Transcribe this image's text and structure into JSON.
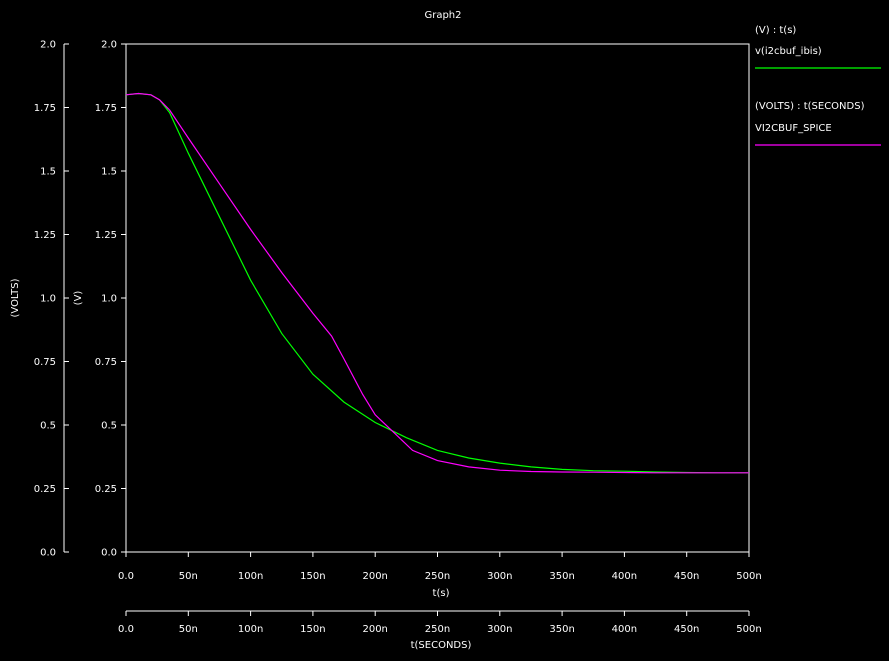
{
  "chart_data": {
    "type": "line",
    "title": "Graph2",
    "xlabel": "t(s)",
    "xlabel_secondary": "t(SECONDS)",
    "ylabel": "(V)",
    "ylabel_secondary": "(VOLTS)",
    "xlim": [
      0,
      500
    ],
    "ylim": [
      0,
      2.0
    ],
    "x_unit_suffix": "n",
    "x_ticks": [
      "0.0",
      "50n",
      "100n",
      "150n",
      "200n",
      "250n",
      "300n",
      "350n",
      "400n",
      "450n",
      "500n"
    ],
    "y_ticks": [
      "0.0",
      "0.25",
      "0.5",
      "0.75",
      "1.0",
      "1.25",
      "1.5",
      "1.75",
      "2.0"
    ],
    "grid": false,
    "legend_position": "right",
    "series": [
      {
        "name": "v(i2cbuf_ibis)",
        "axis_label": "(V) : t(s)",
        "color": "#00ff00",
        "x": [
          0,
          10,
          20,
          27,
          35,
          50,
          75,
          100,
          125,
          150,
          175,
          200,
          225,
          250,
          275,
          300,
          325,
          350,
          375,
          400,
          425,
          450,
          475,
          500
        ],
        "y": [
          1.8,
          1.805,
          1.8,
          1.78,
          1.73,
          1.57,
          1.32,
          1.07,
          0.86,
          0.7,
          0.59,
          0.51,
          0.45,
          0.4,
          0.37,
          0.35,
          0.335,
          0.325,
          0.32,
          0.318,
          0.315,
          0.313,
          0.312,
          0.312
        ]
      },
      {
        "name": "VI2CBUF_SPICE",
        "axis_label": "(VOLTS) : t(SECONDS)",
        "color": "#ff00ff",
        "x": [
          0,
          10,
          20,
          27,
          35,
          50,
          75,
          100,
          125,
          150,
          165,
          175,
          190,
          200,
          215,
          230,
          250,
          275,
          300,
          325,
          350,
          375,
          400,
          425,
          450,
          475,
          500
        ],
        "y": [
          1.8,
          1.805,
          1.8,
          1.78,
          1.74,
          1.63,
          1.45,
          1.27,
          1.1,
          0.94,
          0.85,
          0.76,
          0.62,
          0.54,
          0.47,
          0.4,
          0.36,
          0.335,
          0.322,
          0.317,
          0.315,
          0.314,
          0.313,
          0.312,
          0.312,
          0.312,
          0.312
        ]
      }
    ]
  }
}
